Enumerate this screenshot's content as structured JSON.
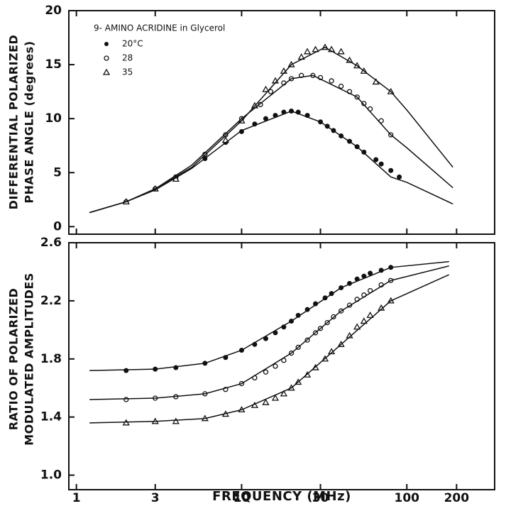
{
  "chart_data": [
    {
      "type": "scatter",
      "y_label_lines": [
        "DIFFERENTIAL POLARIZED",
        "PHASE ANGLE (degrees)"
      ],
      "annotation": "9- AMINO ACRIDINE in Glycerol",
      "xscale": "log",
      "xlim": [
        0.9,
        340
      ],
      "ylim": [
        -0.7,
        20
      ],
      "yticks": [
        0,
        5,
        10,
        15,
        20
      ],
      "series": [
        {
          "name": "20°C",
          "marker": "filled-circle",
          "color": "#111111",
          "x": [
            2,
            3,
            4,
            6,
            8,
            10,
            12,
            14,
            16,
            18,
            20,
            22,
            25,
            30,
            33,
            36,
            40,
            45,
            50,
            55,
            65,
            70,
            80,
            90
          ],
          "values": [
            2.3,
            3.5,
            4.5,
            6.3,
            7.8,
            8.8,
            9.5,
            10,
            10.3,
            10.6,
            10.7,
            10.6,
            10.3,
            9.7,
            9.3,
            8.9,
            8.4,
            7.9,
            7.4,
            6.9,
            6.2,
            5.8,
            5.2,
            4.6
          ]
        },
        {
          "name": "28",
          "marker": "circle",
          "color": "#111111",
          "x": [
            2,
            3,
            4,
            6,
            8,
            10,
            13,
            15,
            18,
            20,
            23,
            27,
            30,
            35,
            40,
            45,
            50,
            55,
            60,
            70,
            80
          ],
          "values": [
            2.3,
            3.5,
            4.6,
            6.7,
            8.5,
            10,
            11.3,
            12.5,
            13.3,
            13.7,
            14,
            14,
            13.8,
            13.5,
            13,
            12.5,
            12,
            11.4,
            10.9,
            9.8,
            8.5
          ]
        },
        {
          "name": "35",
          "marker": "triangle",
          "color": "#111111",
          "x": [
            2,
            3,
            4,
            8,
            10,
            12,
            14,
            16,
            18,
            20,
            23,
            25,
            28,
            32,
            35,
            40,
            45,
            50,
            55,
            65,
            80
          ],
          "values": [
            2.3,
            3.5,
            4.4,
            8,
            9.8,
            11.2,
            12.7,
            13.5,
            14.4,
            15,
            15.7,
            16.2,
            16.4,
            16.6,
            16.4,
            16.2,
            15.4,
            14.9,
            14.4,
            13.4,
            12.5
          ]
        },
        {
          "marker": "line",
          "color": "#111111",
          "x": [
            1.2,
            2,
            3,
            5,
            10,
            20,
            30,
            50,
            80,
            100,
            190
          ],
          "values": [
            1.3,
            2.3,
            3.4,
            5.4,
            8.9,
            10.7,
            9.7,
            7.4,
            4.6,
            4.1,
            2.1
          ]
        },
        {
          "marker": "line",
          "color": "#111111",
          "x": [
            1.2,
            2,
            3,
            5,
            10,
            20,
            27,
            50,
            80,
            100,
            190
          ],
          "values": [
            1.3,
            2.3,
            3.5,
            5.7,
            10,
            13.7,
            14,
            12,
            8.5,
            7.3,
            3.6
          ]
        },
        {
          "marker": "line",
          "color": "#111111",
          "x": [
            1.2,
            2,
            3,
            5,
            10,
            20,
            32,
            50,
            80,
            100,
            190
          ],
          "values": [
            1.3,
            2.3,
            3.5,
            5.5,
            9.8,
            15,
            16.6,
            14.9,
            12.5,
            10.8,
            5.5
          ]
        }
      ]
    },
    {
      "type": "scatter",
      "y_label_lines": [
        "RATIO OF POLARIZED",
        "MODULATED AMPLITUDES"
      ],
      "x_label": "FREQUENCY (MHz)",
      "xscale": "log",
      "xlim": [
        0.9,
        340
      ],
      "xticks": [
        1,
        3,
        10,
        30,
        100,
        200
      ],
      "ylim": [
        0.9,
        2.6
      ],
      "yticks": [
        {
          "value": 1.0,
          "label": "1.0"
        },
        1.4,
        1.8,
        2.2,
        2.6
      ],
      "series": [
        {
          "marker": "filled-circle",
          "color": "#111111",
          "x": [
            2,
            3,
            4,
            6,
            8,
            10,
            12,
            14,
            16,
            18,
            20,
            22,
            25,
            28,
            32,
            35,
            40,
            45,
            50,
            55,
            60,
            70,
            80
          ],
          "values": [
            1.72,
            1.73,
            1.74,
            1.77,
            1.81,
            1.86,
            1.9,
            1.94,
            1.98,
            2.02,
            2.06,
            2.1,
            2.14,
            2.18,
            2.22,
            2.25,
            2.29,
            2.32,
            2.35,
            2.37,
            2.39,
            2.41,
            2.43
          ]
        },
        {
          "marker": "circle",
          "color": "#111111",
          "x": [
            2,
            3,
            4,
            6,
            8,
            10,
            12,
            14,
            16,
            18,
            20,
            22,
            25,
            28,
            30,
            33,
            36,
            40,
            45,
            50,
            55,
            60,
            70,
            80
          ],
          "values": [
            1.52,
            1.53,
            1.54,
            1.56,
            1.59,
            1.63,
            1.67,
            1.71,
            1.75,
            1.79,
            1.84,
            1.88,
            1.93,
            1.98,
            2.01,
            2.05,
            2.09,
            2.13,
            2.17,
            2.21,
            2.24,
            2.27,
            2.31,
            2.34
          ]
        },
        {
          "marker": "triangle",
          "color": "#111111",
          "x": [
            2,
            3,
            4,
            6,
            8,
            10,
            12,
            14,
            16,
            18,
            20,
            22,
            25,
            28,
            32,
            35,
            40,
            45,
            50,
            55,
            60,
            70,
            80
          ],
          "values": [
            1.36,
            1.37,
            1.37,
            1.39,
            1.42,
            1.45,
            1.48,
            1.5,
            1.53,
            1.56,
            1.6,
            1.64,
            1.69,
            1.74,
            1.8,
            1.85,
            1.9,
            1.96,
            2.02,
            2.06,
            2.1,
            2.15,
            2.2
          ]
        },
        {
          "marker": "line",
          "color": "#111111",
          "x": [
            1.2,
            3,
            6,
            10,
            20,
            40,
            80,
            180
          ],
          "values": [
            1.72,
            1.73,
            1.77,
            1.86,
            2.06,
            2.29,
            2.43,
            2.47
          ]
        },
        {
          "marker": "line",
          "color": "#111111",
          "x": [
            1.2,
            3,
            6,
            10,
            20,
            40,
            80,
            180
          ],
          "values": [
            1.52,
            1.53,
            1.56,
            1.63,
            1.84,
            2.13,
            2.34,
            2.44
          ]
        },
        {
          "marker": "line",
          "color": "#111111",
          "x": [
            1.2,
            3,
            6,
            10,
            20,
            40,
            80,
            180
          ],
          "values": [
            1.36,
            1.37,
            1.39,
            1.45,
            1.6,
            1.9,
            2.2,
            2.38
          ]
        }
      ]
    }
  ]
}
